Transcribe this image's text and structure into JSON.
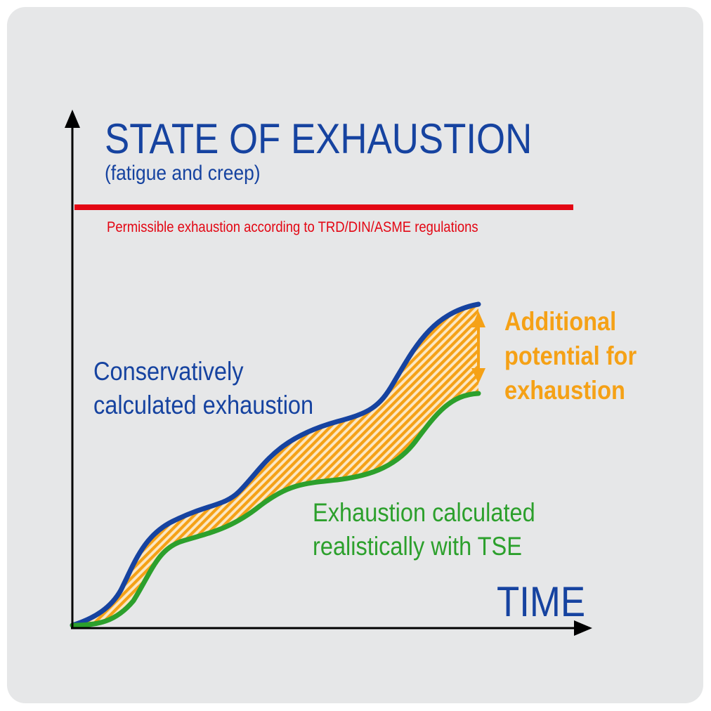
{
  "title": "STATE OF EXHAUSTION",
  "subtitle": "(fatigue and creep)",
  "x_axis_label": "TIME",
  "limit_line": {
    "label": "Permissible exhaustion according to TRD/DIN/ASME regulations",
    "color": "#e30613"
  },
  "curves": {
    "conservative": {
      "label_lines": [
        "Conservatively",
        "calculated exhaustion"
      ],
      "color": "#1643a0"
    },
    "realistic": {
      "label_lines": [
        "Exhaustion calculated",
        "realistically with TSE"
      ],
      "color": "#2ca02c"
    }
  },
  "gap": {
    "label_lines": [
      "Additional",
      "potential for",
      "exhaustion"
    ],
    "color": "#f5a116"
  },
  "colors": {
    "background": "#e6e7e8",
    "axis": "#000000"
  }
}
